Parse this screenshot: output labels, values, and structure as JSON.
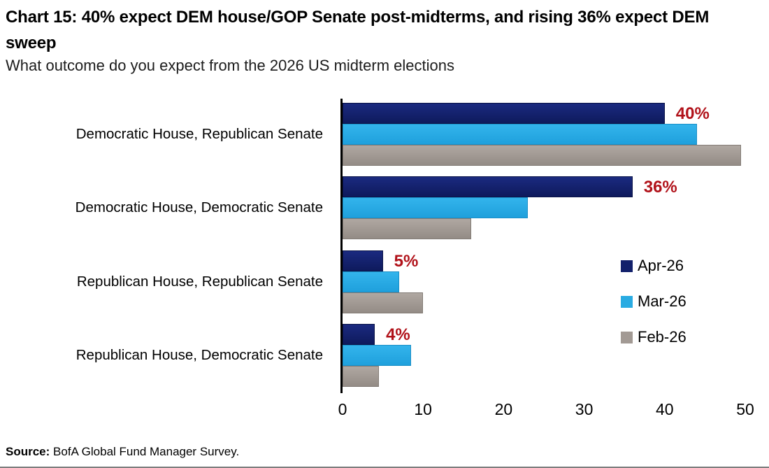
{
  "header": {
    "title": "Chart 15: 40% expect DEM house/GOP Senate post-midterms, and rising 36% expect DEM sweep",
    "subtitle": "What outcome do you expect from the 2026 US midterm elections"
  },
  "chart_data": {
    "type": "bar",
    "orientation": "horizontal",
    "title": "Chart 15: 40% expect DEM house/GOP Senate post-midterms, and rising 36% expect DEM sweep",
    "subtitle": "What outcome do you expect from the 2026 US midterm elections",
    "categories": [
      "Democratic House, Republican Senate",
      "Democratic House, Democratic Senate",
      "Republican House, Republican Senate",
      "Republican House, Democratic Senate"
    ],
    "series": [
      {
        "name": "Apr-26",
        "color": "#12206b",
        "values": [
          40,
          36,
          5,
          4
        ]
      },
      {
        "name": "Mar-26",
        "color": "#29abe2",
        "values": [
          44,
          23,
          7,
          8.5
        ]
      },
      {
        "name": "Feb-26",
        "color": "#a29a94",
        "values": [
          49.5,
          16,
          10,
          4.5
        ]
      }
    ],
    "annotations": [
      {
        "category_index": 0,
        "series": "Apr-26",
        "text": "40%"
      },
      {
        "category_index": 1,
        "series": "Apr-26",
        "text": "36%"
      },
      {
        "category_index": 2,
        "series": "Apr-26",
        "text": "5%"
      },
      {
        "category_index": 3,
        "series": "Apr-26",
        "text": "4%"
      }
    ],
    "annotation_color": "#b1121a",
    "xlabel": "",
    "ylabel": "",
    "xlim": [
      0,
      51
    ],
    "xticks": [
      0,
      10,
      20,
      30,
      40,
      50
    ],
    "grid": false,
    "legend_position": "right-middle"
  },
  "footer": {
    "source_label": "Source:",
    "source_text": " BofA Global Fund Manager Survey."
  }
}
